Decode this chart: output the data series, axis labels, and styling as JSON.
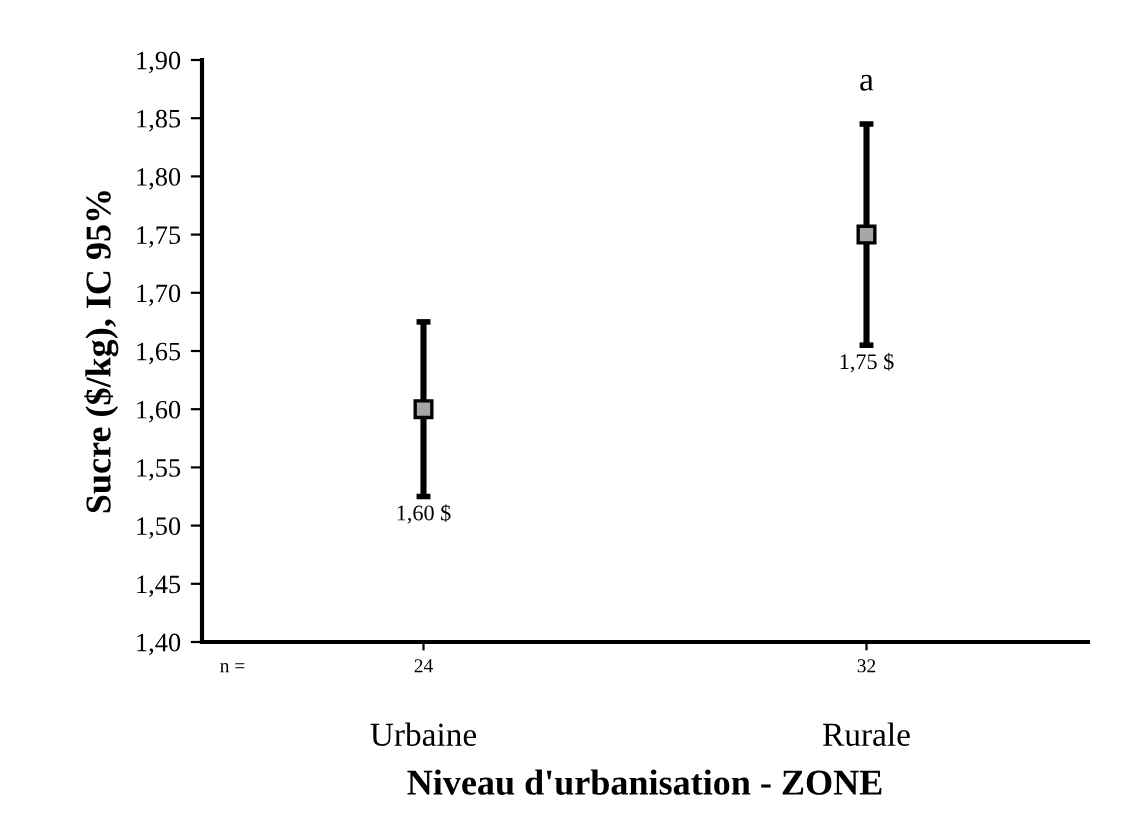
{
  "chart_data": {
    "type": "scatter",
    "xlabel": "Niveau d'urbanisation - ZONE",
    "ylabel": "Sucre ($/kg), IC 95%",
    "categories": [
      "Urbaine",
      "Rurale"
    ],
    "values": [
      1.6,
      1.75
    ],
    "color": "#a6a6a6",
    "errors": [
      [
        1.525,
        1.675
      ],
      [
        1.655,
        1.845
      ]
    ],
    "ylim": [
      1.4,
      1.9
    ],
    "yticks": [
      {
        "value": 1.4,
        "label": "1,40"
      },
      {
        "value": 1.45,
        "label": "1,45"
      },
      {
        "value": 1.5,
        "label": "1,50"
      },
      {
        "value": 1.55,
        "label": "1,55"
      },
      {
        "value": 1.6,
        "label": "1,60"
      },
      {
        "value": 1.65,
        "label": "1,65"
      },
      {
        "value": 1.7,
        "label": "1,70"
      },
      {
        "value": 1.75,
        "label": "1,75"
      },
      {
        "value": 1.8,
        "label": "1,80"
      },
      {
        "value": 1.85,
        "label": "1,85"
      },
      {
        "value": 1.9,
        "label": "1,90"
      }
    ],
    "marker": "square",
    "grid": false,
    "annotations": [
      "n =",
      "24",
      "32",
      {
        "text": "a",
        "x": "Rurale",
        "y": 1.845
      },
      {
        "text": "1,60 $",
        "x": "Urbaine",
        "y": 1.525
      },
      {
        "text": "1,75 $",
        "x": "Rurale",
        "y": 1.655
      }
    ]
  }
}
